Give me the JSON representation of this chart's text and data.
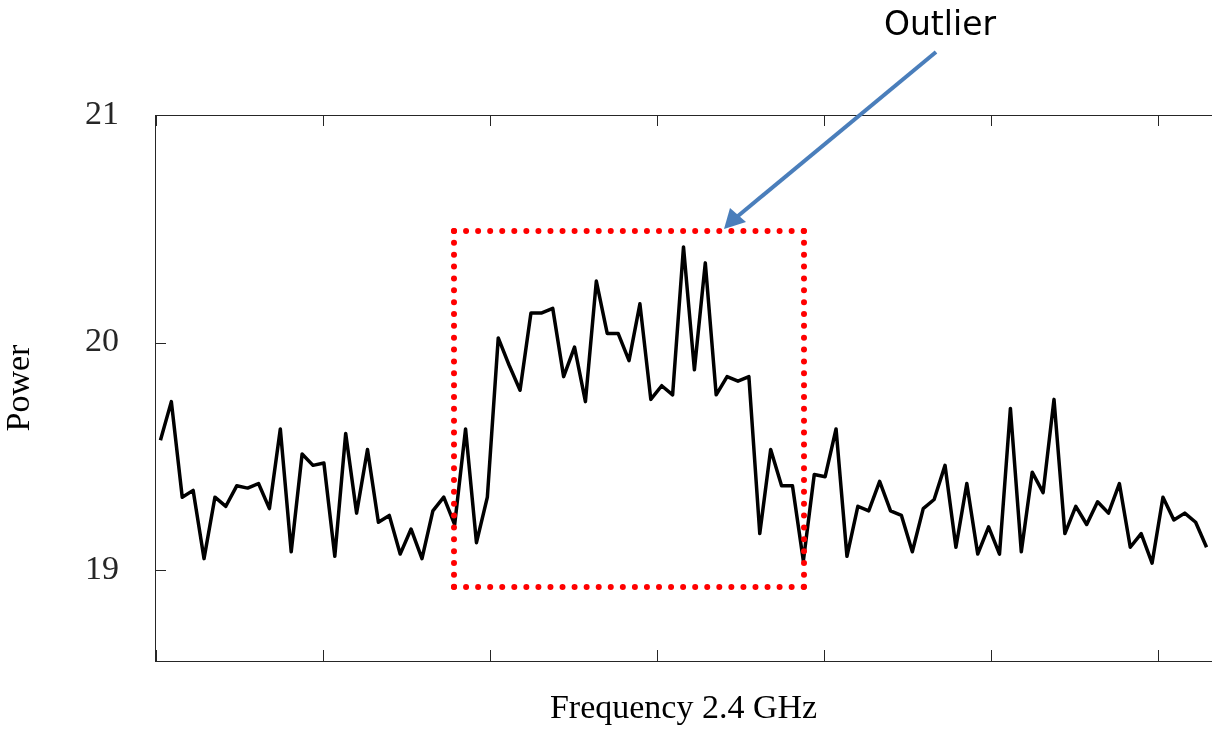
{
  "chart_data": {
    "type": "line",
    "xlabel": "Frequency 2.4 GHz",
    "ylabel": "Power",
    "annotations": [
      "Outlier"
    ],
    "categories": [
      null,
      null,
      null,
      null,
      null,
      null,
      null,
      null,
      null,
      null,
      null,
      null,
      null,
      null,
      null,
      null,
      null,
      null,
      null,
      null,
      null,
      null,
      null,
      null,
      null,
      null,
      null,
      null,
      null,
      null,
      null,
      null,
      null,
      null,
      null,
      null,
      null,
      null,
      null,
      null,
      null,
      null,
      null,
      null,
      null,
      null,
      null,
      null,
      null,
      null,
      null,
      null,
      null,
      null,
      null,
      null,
      null,
      null,
      null,
      null,
      null,
      null,
      null,
      null,
      null,
      null,
      null,
      null,
      null,
      null,
      null,
      null,
      null,
      null,
      null,
      null,
      null,
      null,
      null,
      null,
      null,
      null,
      null,
      null,
      null,
      null,
      null,
      null,
      null,
      null,
      null,
      null,
      null,
      null,
      null,
      null,
      null
    ],
    "series": [
      {
        "color": "#000000",
        "values": [
          19.57,
          19.74,
          19.32,
          19.35,
          19.05,
          19.32,
          19.28,
          19.37,
          19.36,
          19.38,
          19.27,
          19.62,
          19.08,
          19.51,
          19.46,
          19.47,
          19.06,
          19.6,
          19.25,
          19.53,
          19.21,
          19.24,
          19.07,
          19.18,
          19.05,
          19.26,
          19.32,
          19.2,
          19.62,
          19.12,
          19.32,
          20.02,
          19.9,
          19.79,
          20.13,
          20.13,
          20.15,
          19.85,
          19.98,
          19.74,
          20.27,
          20.04,
          20.04,
          19.92,
          20.17,
          19.75,
          19.81,
          19.77,
          20.42,
          19.88,
          20.35,
          19.77,
          19.85,
          19.83,
          19.85,
          19.16,
          19.53,
          19.37,
          19.37,
          19.04,
          19.42,
          19.41,
          19.62,
          19.06,
          19.28,
          19.26,
          19.39,
          19.26,
          19.24,
          19.08,
          19.27,
          19.31,
          19.46,
          19.1,
          19.38,
          19.07,
          19.19,
          19.07,
          19.71,
          19.08,
          19.43,
          19.34,
          19.75,
          19.16,
          19.28,
          19.2,
          19.3,
          19.25,
          19.38,
          19.1,
          19.16,
          19.03,
          19.32,
          19.22,
          19.25,
          19.21,
          19.1
        ]
      }
    ],
    "ylim": [
      18.6,
      21
    ],
    "yticks": [
      19,
      20,
      21
    ],
    "tick_labels": "y",
    "marker": "none",
    "line_style": "solid"
  }
}
